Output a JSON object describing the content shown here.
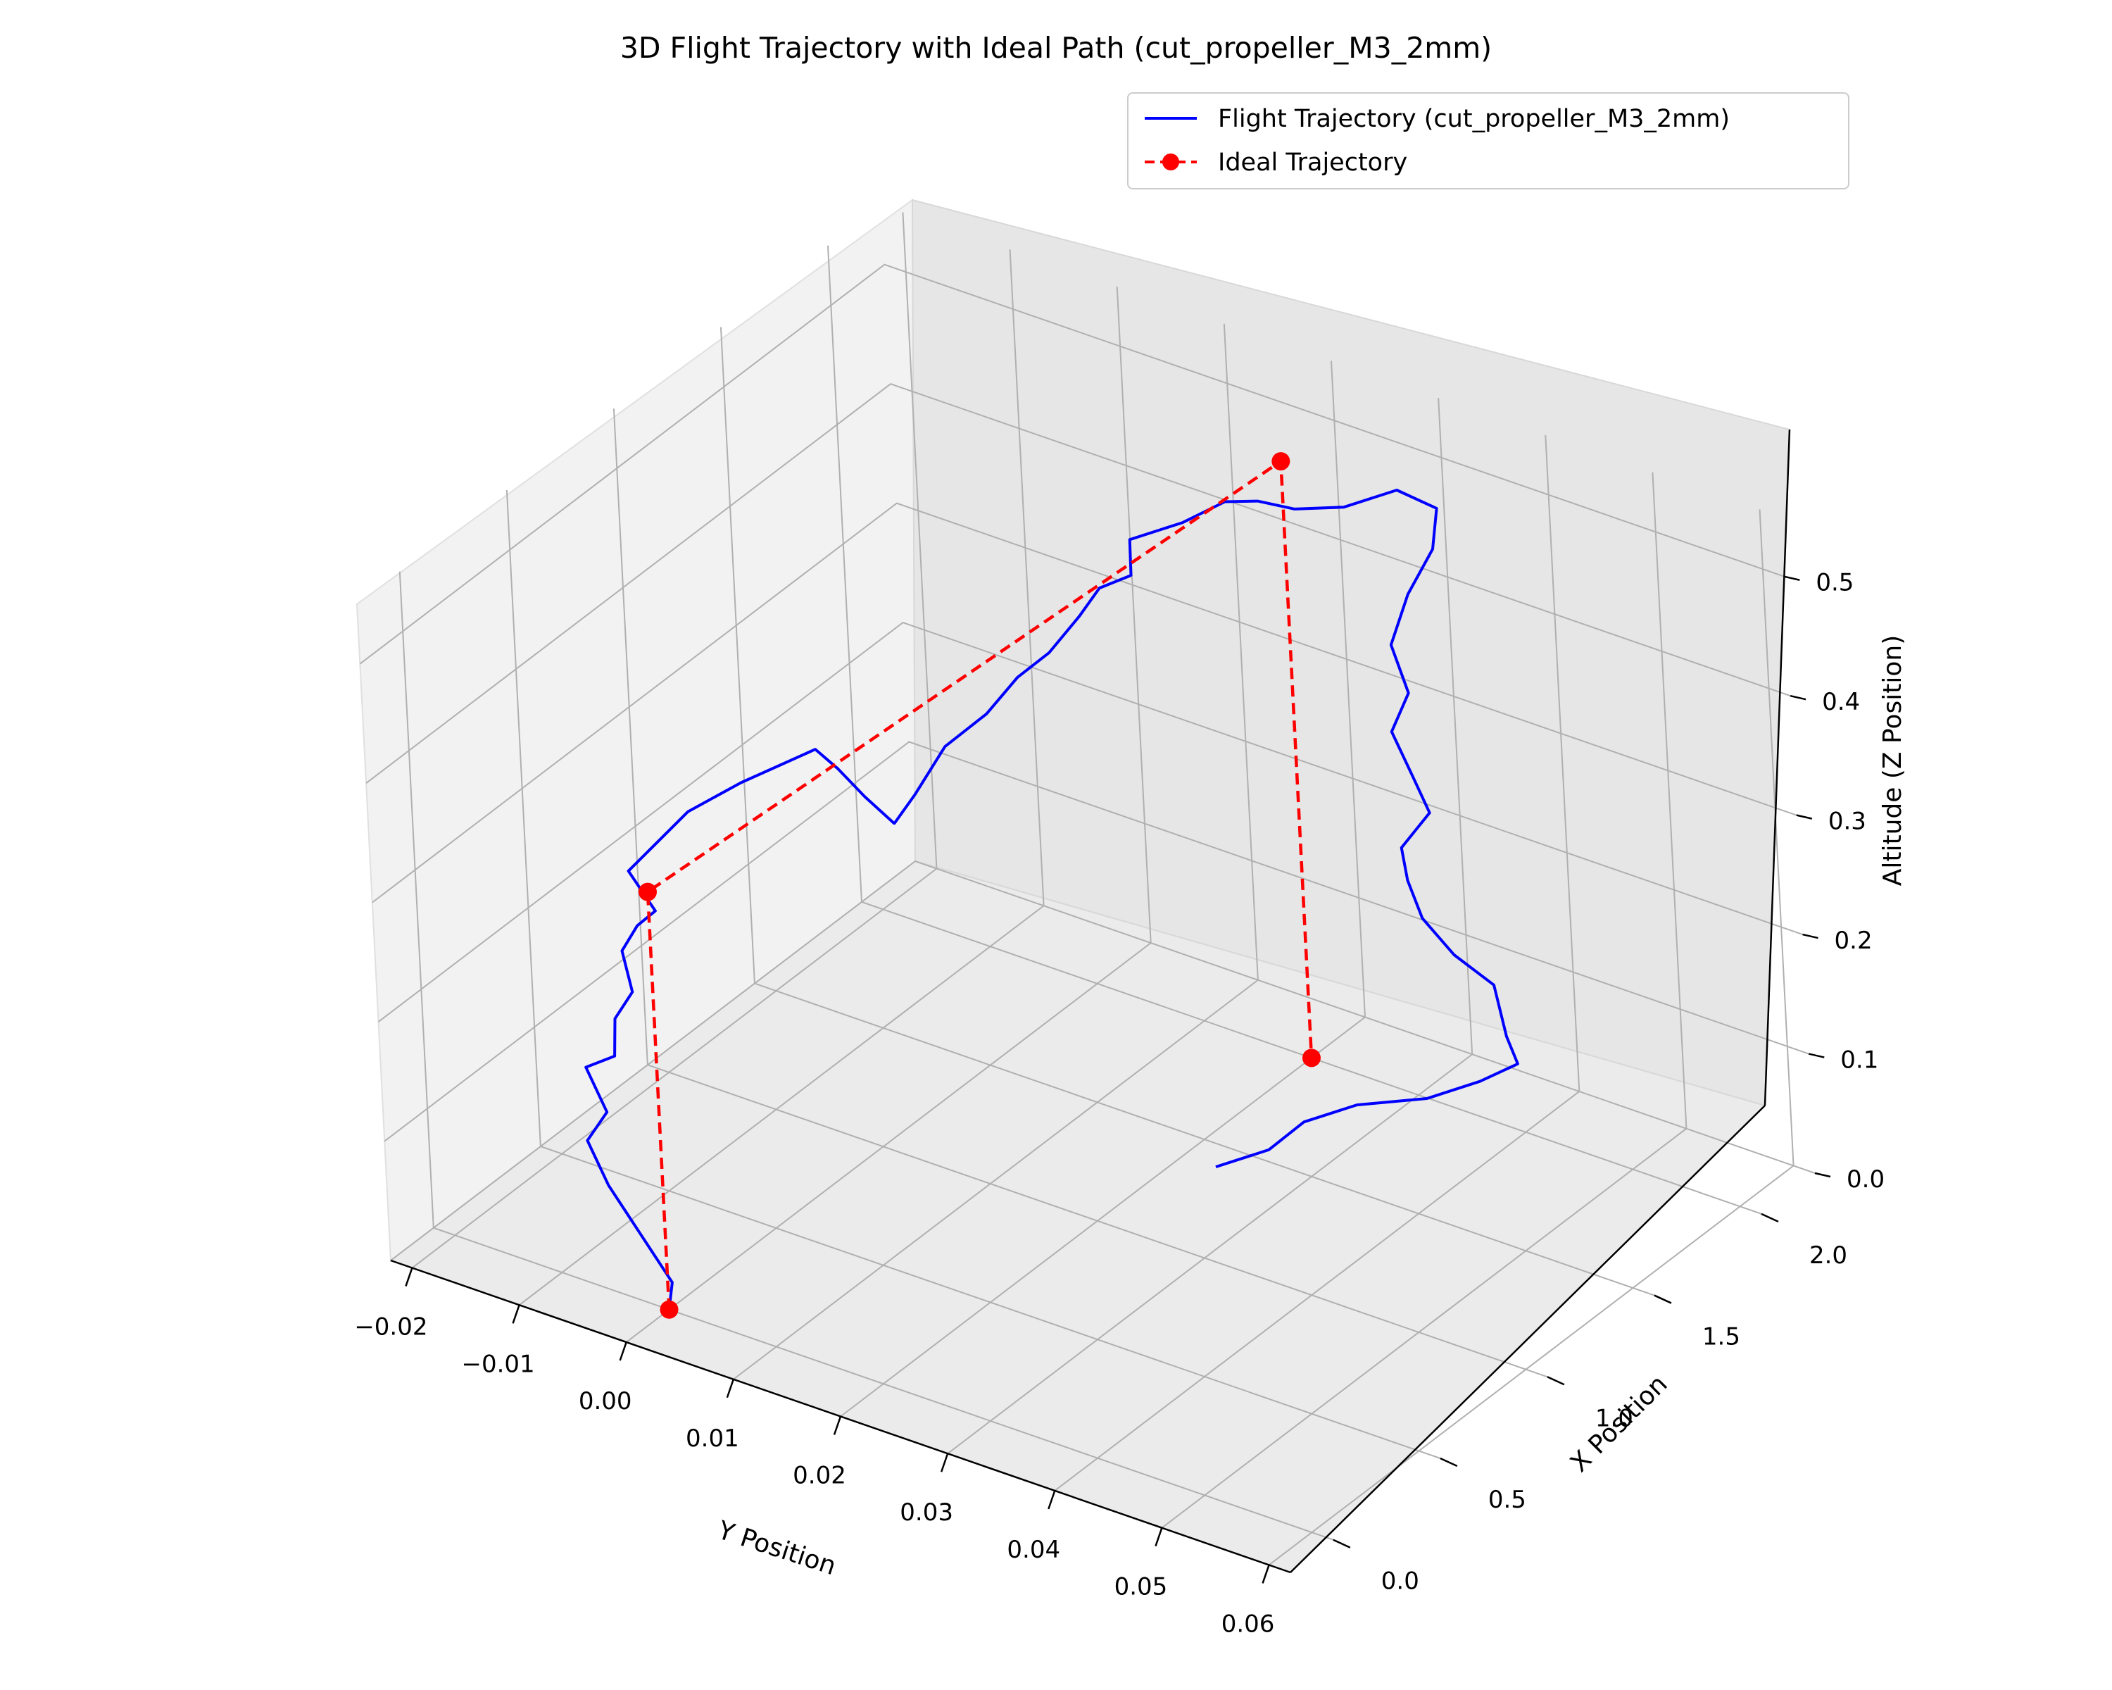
{
  "chart_data": {
    "type": "line3d",
    "title": "3D Flight Trajectory with Ideal Path (cut_propeller_M3_2mm)",
    "xlabel": "Y Position",
    "ylabel": "X Position",
    "zlabel": "Altitude (Z Position)",
    "xlim": [
      -0.022,
      0.062
    ],
    "ylim": [
      -0.2,
      2.25
    ],
    "zlim": [
      0.0,
      0.55
    ],
    "x_ticks": [
      "−0.02",
      "−0.01",
      "0.00",
      "0.01",
      "0.02",
      "0.03",
      "0.04",
      "0.05",
      "0.06"
    ],
    "x_tick_values": [
      -0.02,
      -0.01,
      0.0,
      0.01,
      0.02,
      0.03,
      0.04,
      0.05,
      0.06
    ],
    "y_ticks": [
      "0.0",
      "0.5",
      "1.0",
      "1.5",
      "2.0"
    ],
    "y_tick_values": [
      0.0,
      0.5,
      1.0,
      1.5,
      2.0
    ],
    "z_ticks": [
      "0.0",
      "0.1",
      "0.2",
      "0.3",
      "0.4",
      "0.5"
    ],
    "z_tick_values": [
      0.0,
      0.1,
      0.2,
      0.3,
      0.4,
      0.5
    ],
    "grid": true,
    "legend_position": "top-right",
    "series": [
      {
        "name": "Flight Trajectory (cut_propeller_M3_2mm)",
        "color": "#0000ff",
        "style": "solid",
        "points": [
          [
            0.0,
            0.0,
            0.0
          ],
          [
            0.0,
            0.02,
            0.02
          ],
          [
            -0.003,
            0.03,
            0.05
          ],
          [
            -0.006,
            0.04,
            0.08
          ],
          [
            -0.008,
            0.05,
            0.11
          ],
          [
            -0.006,
            0.05,
            0.14
          ],
          [
            -0.008,
            0.06,
            0.17
          ],
          [
            -0.005,
            0.05,
            0.19
          ],
          [
            -0.005,
            0.06,
            0.22
          ],
          [
            -0.003,
            0.05,
            0.25
          ],
          [
            -0.004,
            0.06,
            0.28
          ],
          [
            -0.002,
            0.04,
            0.31
          ],
          [
            0.0,
            0.03,
            0.33
          ],
          [
            -0.003,
            0.06,
            0.35
          ],
          [
            -0.0,
            0.2,
            0.39
          ],
          [
            0.002,
            0.35,
            0.4
          ],
          [
            0.005,
            0.55,
            0.41
          ],
          [
            0.006,
            0.6,
            0.39
          ],
          [
            0.008,
            0.62,
            0.37
          ],
          [
            0.01,
            0.65,
            0.35
          ],
          [
            0.009,
            0.7,
            0.34
          ],
          [
            0.01,
            0.75,
            0.36
          ],
          [
            0.011,
            0.85,
            0.39
          ],
          [
            0.013,
            0.95,
            0.41
          ],
          [
            0.014,
            1.05,
            0.43
          ],
          [
            0.015,
            1.15,
            0.44
          ],
          [
            0.017,
            1.2,
            0.47
          ],
          [
            0.018,
            1.25,
            0.49
          ],
          [
            0.02,
            1.3,
            0.5
          ],
          [
            0.019,
            1.35,
            0.52
          ],
          [
            0.022,
            1.45,
            0.53
          ],
          [
            0.024,
            1.55,
            0.54
          ],
          [
            0.025,
            1.65,
            0.53
          ],
          [
            0.027,
            1.72,
            0.52
          ],
          [
            0.03,
            1.8,
            0.52
          ],
          [
            0.033,
            1.9,
            0.53
          ],
          [
            0.035,
            1.98,
            0.51
          ],
          [
            0.034,
            2.0,
            0.47
          ],
          [
            0.031,
            2.02,
            0.42
          ],
          [
            0.03,
            1.98,
            0.38
          ],
          [
            0.031,
            2.0,
            0.34
          ],
          [
            0.029,
            2.01,
            0.3
          ],
          [
            0.031,
            2.0,
            0.27
          ],
          [
            0.032,
            2.02,
            0.24
          ],
          [
            0.03,
            1.98,
            0.21
          ],
          [
            0.03,
            2.0,
            0.18
          ],
          [
            0.031,
            2.01,
            0.15
          ],
          [
            0.033,
            2.05,
            0.12
          ],
          [
            0.036,
            2.08,
            0.1
          ],
          [
            0.038,
            2.03,
            0.07
          ],
          [
            0.04,
            1.98,
            0.06
          ],
          [
            0.038,
            1.9,
            0.05
          ],
          [
            0.035,
            1.8,
            0.04
          ],
          [
            0.03,
            1.72,
            0.03
          ],
          [
            0.027,
            1.62,
            0.02
          ],
          [
            0.025,
            1.55,
            0.0
          ],
          [
            0.022,
            1.45,
            -0.01
          ]
        ]
      },
      {
        "name": "Ideal Trajectory",
        "color": "#ff0000",
        "style": "dashed",
        "marker": "circle",
        "points": [
          [
            0.0,
            0.0,
            0.0
          ],
          [
            0.0,
            0.0,
            0.35
          ],
          [
            0.02,
            2.0,
            0.5
          ],
          [
            0.02,
            2.0,
            0.0
          ]
        ]
      }
    ]
  }
}
